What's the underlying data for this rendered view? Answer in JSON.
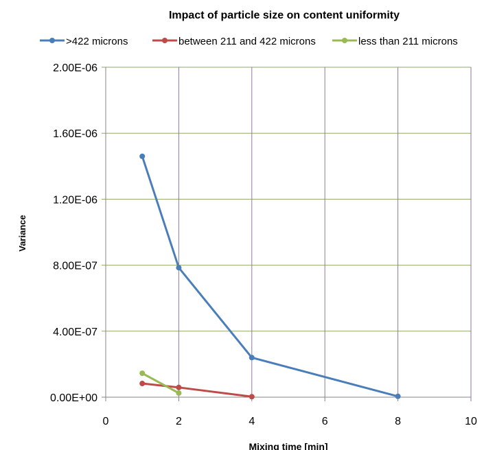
{
  "chart_data": {
    "type": "line",
    "title": "Impact of particle size on content uniformity",
    "xlabel": "Mixing time [min]",
    "ylabel": "Variance",
    "xlim": [
      0,
      10
    ],
    "ylim": [
      0,
      2e-06
    ],
    "xticks": [
      "0",
      "2",
      "4",
      "6",
      "8",
      "10"
    ],
    "xtick_values": [
      0,
      2,
      4,
      6,
      8,
      10
    ],
    "yticks": [
      "0.00E+00",
      "4.00E-07",
      "8.00E-07",
      "1.20E-06",
      "1.60E-06",
      "2.00E-06"
    ],
    "ytick_values": [
      0,
      4e-07,
      8e-07,
      1.2e-06,
      1.6e-06,
      2e-06
    ],
    "grid": true,
    "legend_position": "top",
    "series": [
      {
        "name": ">422 microns",
        "color": "#4a7ebb",
        "x": [
          1,
          2,
          4,
          8
        ],
        "y": [
          1.46e-06,
          7.85e-07,
          2.4e-07,
          5e-09
        ]
      },
      {
        "name": "between 211 and 422 microns",
        "color": "#be4b48",
        "x": [
          1,
          2,
          4
        ],
        "y": [
          8.3e-08,
          5.9e-08,
          3e-09
        ]
      },
      {
        "name": "less than 211 microns",
        "color": "#98b954",
        "x": [
          1,
          2
        ],
        "y": [
          1.45e-07,
          2.5e-08
        ]
      }
    ]
  }
}
